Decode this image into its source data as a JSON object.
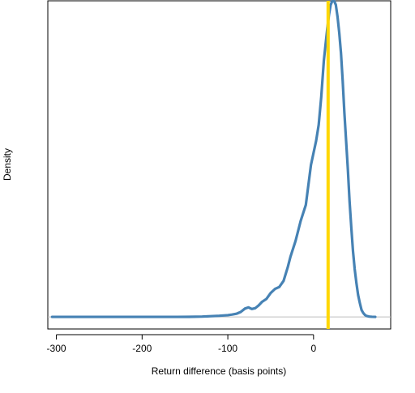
{
  "chart_data": {
    "type": "line",
    "title": "",
    "xlabel": "Return difference (basis points)",
    "ylabel": "Density",
    "xlim": [
      -310,
      90
    ],
    "ylim": [
      -0.0006,
      0.0158
    ],
    "xticks": [
      -300,
      -200,
      -100,
      0
    ],
    "xtick_labels": [
      "-300",
      "-200",
      "-100",
      "0"
    ],
    "yticks_visible": false,
    "grid": false,
    "legend": "none",
    "baseline_y": 0,
    "vline_x": 17,
    "series": [
      {
        "values_x": [
          -305,
          -280,
          -250,
          -220,
          -200,
          -180,
          -160,
          -145,
          -130,
          -120,
          -110,
          -100,
          -95,
          -90,
          -85,
          -80,
          -76,
          -72,
          -68,
          -64,
          -60,
          -55,
          -50,
          -45,
          -40,
          -35,
          -30,
          -27,
          -24,
          -21,
          -18,
          -15,
          -12,
          -9,
          -6,
          -3,
          0,
          3,
          6,
          9,
          12,
          14,
          16,
          18,
          20,
          22,
          24,
          26,
          28,
          30,
          32,
          34,
          36,
          38,
          40,
          42,
          44,
          46,
          48,
          50,
          52,
          54,
          56,
          58,
          60,
          62,
          65,
          68,
          72
        ],
        "values_y": [
          5e-06,
          5e-06,
          5e-06,
          5e-06,
          5e-06,
          5e-06,
          5e-06,
          8e-06,
          2e-05,
          4e-05,
          6e-05,
          9e-05,
          0.00012,
          0.00016,
          0.00025,
          0.00042,
          0.00048,
          0.0004,
          0.00044,
          0.00058,
          0.00076,
          0.0009,
          0.0012,
          0.0014,
          0.0015,
          0.0018,
          0.0025,
          0.003,
          0.0034,
          0.0038,
          0.0043,
          0.0048,
          0.0052,
          0.0056,
          0.0066,
          0.0076,
          0.0082,
          0.0088,
          0.0096,
          0.011,
          0.0128,
          0.0136,
          0.0144,
          0.0151,
          0.0156,
          0.0158,
          0.0158,
          0.0156,
          0.015,
          0.0142,
          0.0132,
          0.0118,
          0.0102,
          0.0088,
          0.0074,
          0.0058,
          0.0045,
          0.0033,
          0.0024,
          0.0017,
          0.0011,
          0.0007,
          0.00035,
          0.0002,
          0.0001,
          5e-05,
          2e-05,
          1e-05,
          5e-06
        ]
      }
    ]
  },
  "colors": {
    "series_line": "#4682b4",
    "vline": "#ffd700",
    "baseline": "#bebebe",
    "axes": "#000000"
  }
}
